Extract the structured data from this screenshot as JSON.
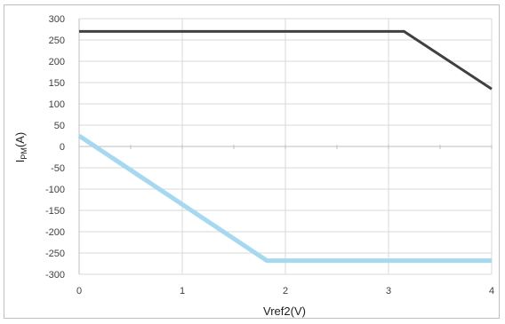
{
  "chart_data": {
    "type": "line",
    "xlabel": "Vref2(V)",
    "ylabel": {
      "base": "I",
      "sub": "PM",
      "rest": "(A)"
    },
    "xlim": [
      0,
      4
    ],
    "ylim": [
      -300,
      300
    ],
    "x_ticks": [
      0,
      1,
      2,
      3,
      4
    ],
    "y_ticks": [
      300,
      250,
      200,
      150,
      100,
      50,
      0,
      -50,
      -100,
      -150,
      -200,
      -250,
      -300
    ],
    "x_tick_labels": [
      "0",
      "1",
      "2",
      "3",
      "4"
    ],
    "y_tick_labels": [
      "300",
      "250",
      "200",
      "150",
      "100",
      "50",
      "0",
      "-50",
      "-100",
      "-150",
      "-200",
      "-250",
      "-300"
    ],
    "grid": true,
    "legend": "none",
    "series": [
      {
        "color": "#404040",
        "points": [
          [
            0,
            270
          ],
          [
            3.15,
            270
          ],
          [
            4,
            135
          ]
        ]
      },
      {
        "color": "#a6d9f0",
        "points": [
          [
            0,
            25
          ],
          [
            1.82,
            -268
          ],
          [
            4,
            -268
          ]
        ]
      }
    ]
  }
}
